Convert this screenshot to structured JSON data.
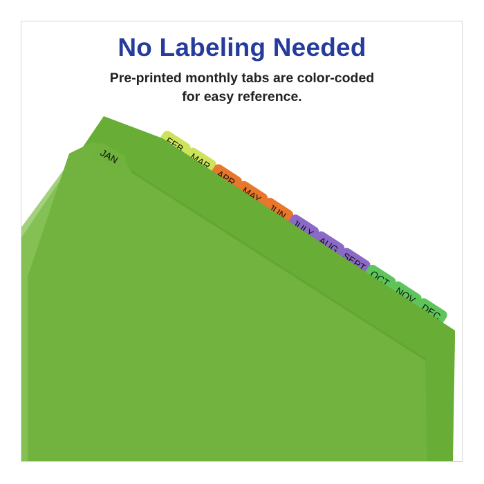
{
  "heading": "No Labeling Needed",
  "subheading": [
    "Pre-printed monthly tabs are color-coded",
    "for easy reference."
  ],
  "front_tab": {
    "label": "JAN",
    "color": "#6fb23c"
  },
  "tabs": [
    {
      "label": "FEB",
      "color": "#cde35a"
    },
    {
      "label": "MAR",
      "color": "#cde35a"
    },
    {
      "label": "APR",
      "color": "#e8772b"
    },
    {
      "label": "MAY",
      "color": "#e8772b"
    },
    {
      "label": "JUN",
      "color": "#e8772b"
    },
    {
      "label": "JULY",
      "color": "#8a6ac6"
    },
    {
      "label": "AUG",
      "color": "#8a6ac6"
    },
    {
      "label": "SEPT",
      "color": "#8a6ac6"
    },
    {
      "label": "OCT",
      "color": "#5ec55a"
    },
    {
      "label": "NOV",
      "color": "#5ec55a"
    },
    {
      "label": "DEC",
      "color": "#5ec55a"
    }
  ],
  "colors": {
    "heading": "#253c9c",
    "divider": "#6aaf3a",
    "divider_front": "#74b440"
  }
}
